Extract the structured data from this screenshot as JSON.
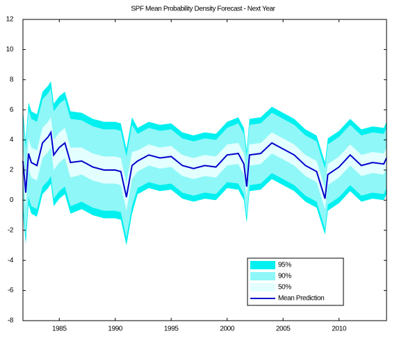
{
  "chart_data": {
    "type": "fan",
    "title": "SPF Mean Probability Density Forecast - Next Year",
    "x": [
      1981.75,
      1982.0,
      1982.25,
      1982.5,
      1983.0,
      1983.5,
      1984.0,
      1984.25,
      1984.5,
      1985.0,
      1985.5,
      1986.0,
      1987.0,
      1988.0,
      1989.0,
      1990.0,
      1990.5,
      1991.0,
      1991.5,
      1992.0,
      1993.0,
      1994.0,
      1995.0,
      1996.0,
      1997.0,
      1998.0,
      1999.0,
      2000.0,
      2001.0,
      2001.5,
      2001.75,
      2002.0,
      2003.0,
      2004.0,
      2005.0,
      2006.0,
      2007.0,
      2008.0,
      2008.75,
      2009.0,
      2010.0,
      2011.0,
      2012.0,
      2013.0,
      2014.0,
      2014.25
    ],
    "series": [
      {
        "name": "95%",
        "color": "#00f0f0",
        "lower": [
          -0.8,
          -2.9,
          -0.3,
          -0.9,
          -1.1,
          0.4,
          0.8,
          1.1,
          -0.4,
          0.1,
          0.4,
          -0.9,
          -0.6,
          -1.0,
          -1.2,
          -1.2,
          -1.3,
          -3.0,
          -0.9,
          0.4,
          0.8,
          0.6,
          0.7,
          0.1,
          -0.1,
          0.1,
          0.0,
          0.8,
          0.7,
          0.0,
          -1.5,
          0.6,
          0.7,
          1.4,
          1.0,
          0.6,
          -0.1,
          -0.5,
          -2.3,
          -0.7,
          -0.2,
          0.6,
          -0.1,
          0.1,
          0.0,
          0.4
        ],
        "upper": [
          6.0,
          3.9,
          6.5,
          5.9,
          5.7,
          7.2,
          7.6,
          7.9,
          6.4,
          6.9,
          7.2,
          5.9,
          5.8,
          5.4,
          5.2,
          5.2,
          5.1,
          3.4,
          5.5,
          4.8,
          5.2,
          5.0,
          5.1,
          4.5,
          4.3,
          4.5,
          4.4,
          5.2,
          5.5,
          4.8,
          3.3,
          5.4,
          5.5,
          6.2,
          5.8,
          5.4,
          4.7,
          4.3,
          2.5,
          4.1,
          4.6,
          5.4,
          4.7,
          4.9,
          4.8,
          5.2
        ]
      },
      {
        "name": "90%",
        "color": "#8ff7f7",
        "lower": [
          -0.3,
          -2.4,
          0.2,
          -0.4,
          -0.6,
          0.9,
          1.3,
          1.6,
          0.1,
          0.6,
          0.9,
          -0.4,
          -0.1,
          -0.5,
          -0.7,
          -0.7,
          -0.8,
          -2.5,
          -0.4,
          0.8,
          1.2,
          1.0,
          1.1,
          0.5,
          0.3,
          0.5,
          0.4,
          1.2,
          1.1,
          0.4,
          -1.1,
          1.0,
          1.1,
          1.8,
          1.4,
          1.0,
          0.3,
          -0.1,
          -1.9,
          -0.3,
          0.2,
          1.0,
          0.3,
          0.5,
          0.4,
          0.8
        ],
        "upper": [
          5.5,
          3.4,
          6.0,
          5.4,
          5.2,
          6.7,
          7.1,
          7.4,
          5.9,
          6.4,
          6.7,
          5.4,
          5.3,
          4.9,
          4.7,
          4.7,
          4.6,
          2.9,
          5.0,
          4.4,
          4.8,
          4.6,
          4.7,
          4.1,
          3.9,
          4.1,
          4.0,
          4.8,
          5.1,
          4.4,
          2.9,
          5.0,
          5.1,
          5.8,
          5.4,
          5.0,
          4.3,
          3.9,
          2.1,
          3.7,
          4.2,
          5.0,
          4.3,
          4.5,
          4.4,
          4.8
        ]
      },
      {
        "name": "50%",
        "color": "#e3ffff",
        "lower": [
          1.6,
          -0.5,
          2.1,
          1.5,
          1.3,
          2.8,
          3.2,
          3.5,
          2.0,
          2.5,
          2.8,
          1.5,
          1.7,
          1.3,
          1.1,
          1.1,
          1.0,
          -0.7,
          1.4,
          1.9,
          2.3,
          2.1,
          2.2,
          1.6,
          1.4,
          1.6,
          1.5,
          2.3,
          2.4,
          1.7,
          0.2,
          2.3,
          2.4,
          3.1,
          2.7,
          2.3,
          1.6,
          1.2,
          -0.6,
          1.0,
          1.5,
          2.3,
          1.6,
          1.8,
          1.7,
          2.1
        ],
        "upper": [
          3.6,
          1.5,
          4.1,
          3.5,
          3.3,
          4.8,
          5.2,
          5.5,
          4.0,
          4.5,
          4.8,
          3.5,
          3.5,
          3.1,
          2.9,
          2.9,
          2.8,
          1.1,
          3.2,
          3.3,
          3.7,
          3.5,
          3.6,
          3.0,
          2.8,
          3.0,
          2.9,
          3.7,
          3.8,
          3.1,
          1.6,
          3.7,
          3.8,
          4.5,
          4.1,
          3.7,
          3.0,
          2.6,
          0.8,
          2.4,
          2.9,
          3.7,
          3.0,
          3.2,
          3.1,
          3.5
        ]
      },
      {
        "name": "Mean Prediction",
        "color": "#0000cc",
        "values": [
          2.6,
          0.5,
          3.1,
          2.5,
          2.3,
          3.8,
          4.2,
          4.5,
          3.0,
          3.5,
          3.8,
          2.5,
          2.6,
          2.2,
          2.0,
          2.0,
          1.9,
          0.2,
          2.3,
          2.6,
          3.0,
          2.8,
          2.9,
          2.3,
          2.1,
          2.3,
          2.2,
          3.0,
          3.1,
          2.4,
          0.9,
          3.0,
          3.1,
          3.8,
          3.4,
          3.0,
          2.3,
          1.9,
          0.1,
          1.7,
          2.2,
          3.0,
          2.3,
          2.5,
          2.4,
          2.8
        ]
      }
    ],
    "xlim": [
      1981.75,
      2014.25
    ],
    "xticks": [
      1985,
      1990,
      1995,
      2000,
      2005,
      2010
    ],
    "ylim": [
      -8,
      12
    ],
    "yticks": [
      -8,
      -6,
      -4,
      -2,
      0,
      2,
      4,
      6,
      8,
      10,
      12
    ],
    "grid": false,
    "legend": "lower right"
  }
}
